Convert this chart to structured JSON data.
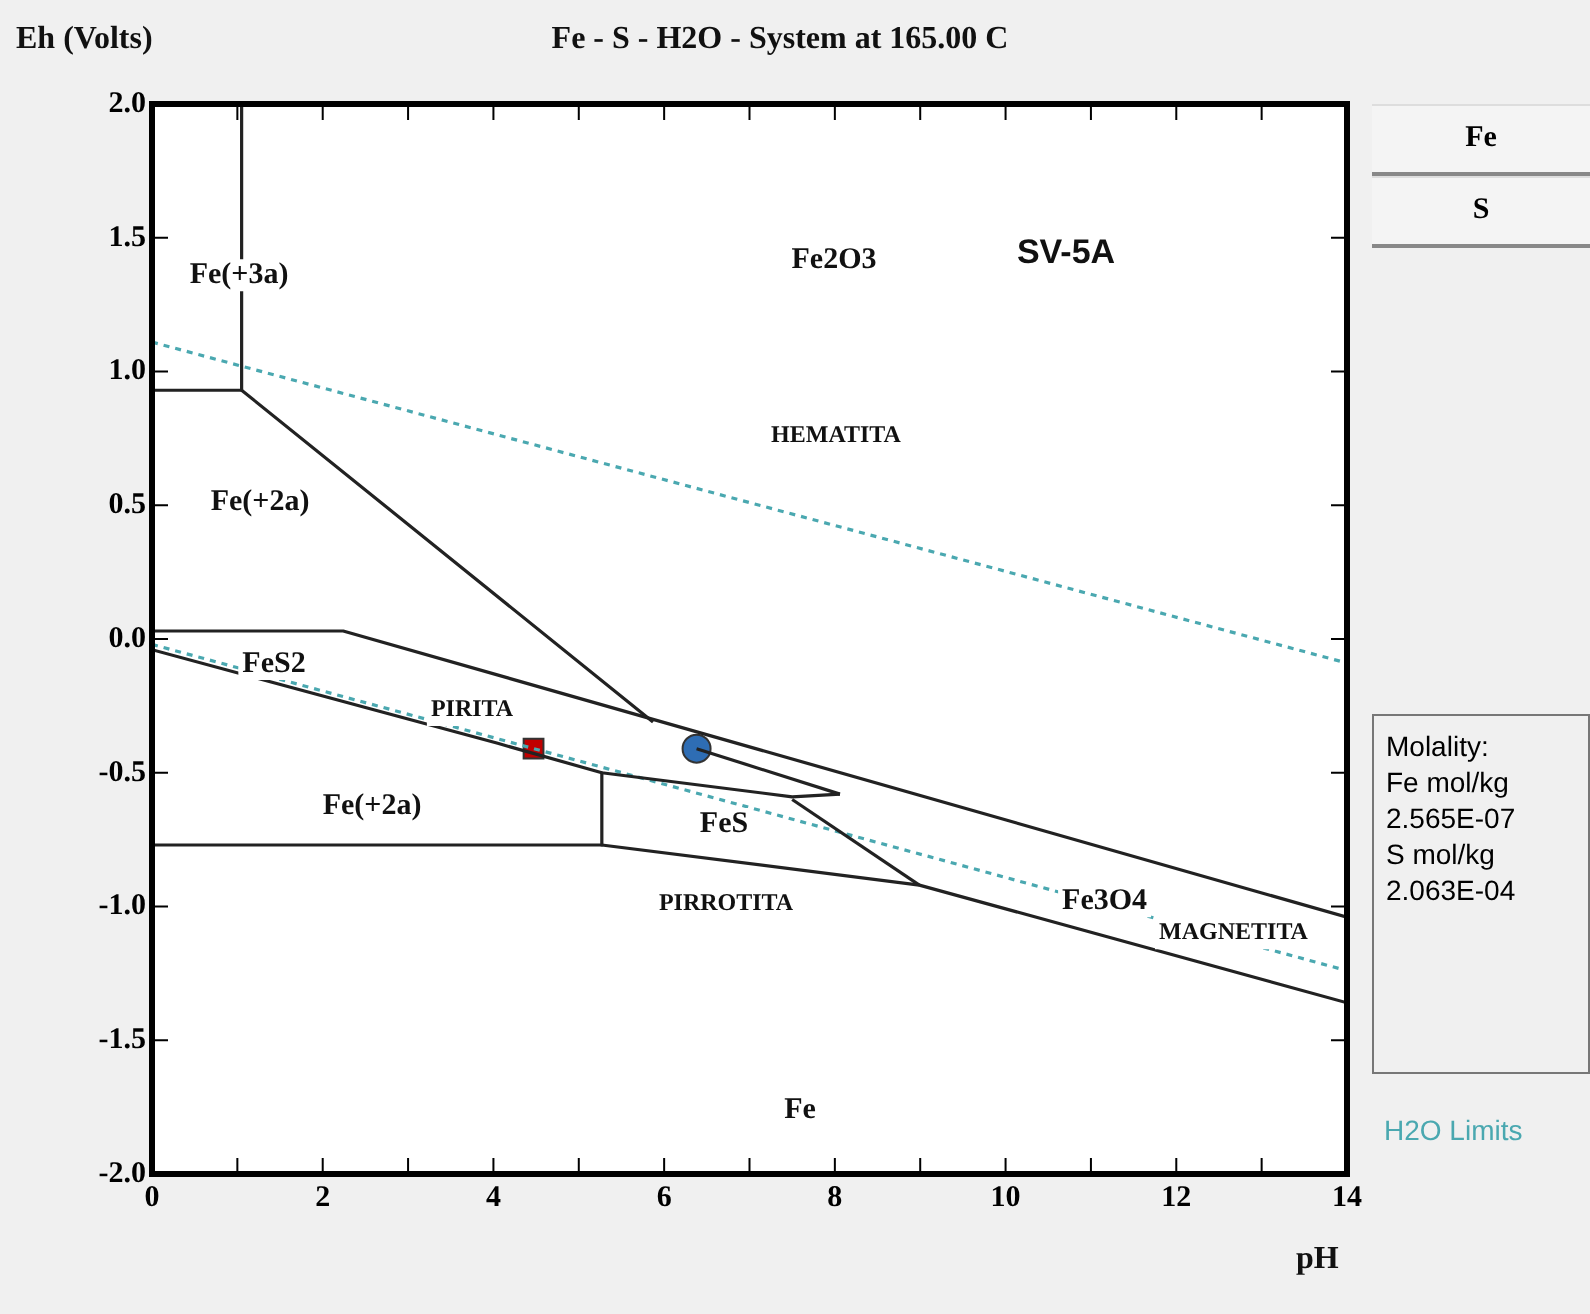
{
  "chart_data": {
    "type": "line",
    "title": "Fe - S - H2O - System at 165.00 C",
    "xlabel": "pH",
    "ylabel": "Eh (Volts)",
    "xlim": [
      0,
      14
    ],
    "ylim": [
      -2.0,
      2.0
    ],
    "xticks": [
      0,
      {
        "value": 1,
        "label": null
      },
      2,
      {
        "value": 3,
        "label": null
      },
      4,
      {
        "value": 5,
        "label": null
      },
      6,
      {
        "value": 7,
        "label": null
      },
      8,
      {
        "value": 9,
        "label": null
      },
      10,
      {
        "value": 11,
        "label": null
      },
      12,
      {
        "value": 13,
        "label": null
      },
      14
    ],
    "yticks": [
      {
        "value": -2,
        "label": "-2.0"
      },
      {
        "value": -1.5,
        "label": "-1.5"
      },
      {
        "value": -1,
        "label": "-1.0"
      },
      {
        "value": -0.5,
        "label": "-0.5"
      },
      {
        "value": 0,
        "label": "0.0"
      },
      {
        "value": 0.5,
        "label": "0.5"
      },
      {
        "value": 1,
        "label": "1.0"
      },
      {
        "value": 1.5,
        "label": "1.5"
      },
      {
        "value": 2,
        "label": "2.0"
      }
    ],
    "legend": "right",
    "series": [
      {
        "color": "#222222",
        "marker": "none",
        "line_style": "solid",
        "x": [
          1.05,
          1.05
        ],
        "values": [
          2.0,
          0.93
        ]
      },
      {
        "color": "#222222",
        "marker": "none",
        "line_style": "solid",
        "x": [
          0,
          1.05,
          5.87
        ],
        "values": [
          0.93,
          0.93,
          -0.31
        ]
      },
      {
        "color": "#222222",
        "marker": "none",
        "line_style": "solid",
        "x": [
          0,
          2.24,
          14
        ],
        "values": [
          0.03,
          0.03,
          -1.04
        ]
      },
      {
        "color": "#222222",
        "marker": "none",
        "line_style": "solid",
        "x": [
          0,
          4.05,
          5.27,
          7.5,
          8.06
        ],
        "values": [
          -0.04,
          -0.39,
          -0.5,
          -0.59,
          -0.58
        ]
      },
      {
        "color": "#222222",
        "marker": "none",
        "line_style": "solid",
        "x": [
          6.38,
          8.06
        ],
        "values": [
          -0.41,
          -0.58
        ]
      },
      {
        "color": "#222222",
        "marker": "none",
        "line_style": "solid",
        "x": [
          5.27,
          5.27
        ],
        "values": [
          -0.5,
          -0.77
        ]
      },
      {
        "color": "#222222",
        "marker": "none",
        "line_style": "solid",
        "x": [
          0,
          5.27,
          8.99,
          14
        ],
        "values": [
          -0.77,
          -0.77,
          -0.92,
          -1.36
        ]
      },
      {
        "color": "#222222",
        "marker": "none",
        "line_style": "solid",
        "x": [
          7.5,
          8.99
        ],
        "values": [
          -0.6,
          -0.92
        ]
      },
      {
        "name": "H2O Limits",
        "color": "#4aa8b0",
        "marker": "none",
        "line_style": "dotted",
        "x": [
          0,
          14
        ],
        "values": [
          1.11,
          -0.09
        ]
      },
      {
        "color": "#4aa8b0",
        "marker": "none",
        "line_style": "dotted",
        "x": [
          0,
          14
        ],
        "values": [
          -0.02,
          -1.24
        ]
      },
      {
        "type": "scatter",
        "color": "#c00000",
        "marker": "square",
        "x": [
          4.47
        ],
        "values": [
          -0.41
        ]
      },
      {
        "type": "scatter",
        "color": "#2e6db4",
        "marker": "circle",
        "x": [
          6.38
        ],
        "values": [
          -0.41
        ]
      }
    ],
    "annotations": [
      {
        "text": "Fe(+3a)",
        "x": 1.02,
        "y": 1.36
      },
      {
        "text": "Fe3O4",
        "x": 11.16,
        "y": -0.98
      },
      {
        "text": "MAGNETITA",
        "x": 12.67,
        "y": -1.1
      },
      "Fe2O3",
      "SV-5A",
      "HEMATITA",
      "Fe(+2a)",
      "FeS2",
      "PIRITA",
      "Fe(+2a)",
      "FeS",
      "PIRROTITA",
      "Fe",
      "Fe",
      "S",
      "Molality:\nFe mol/kg\n2.565E-07\nS mol/kg\n2.063E-04"
    ]
  }
}
